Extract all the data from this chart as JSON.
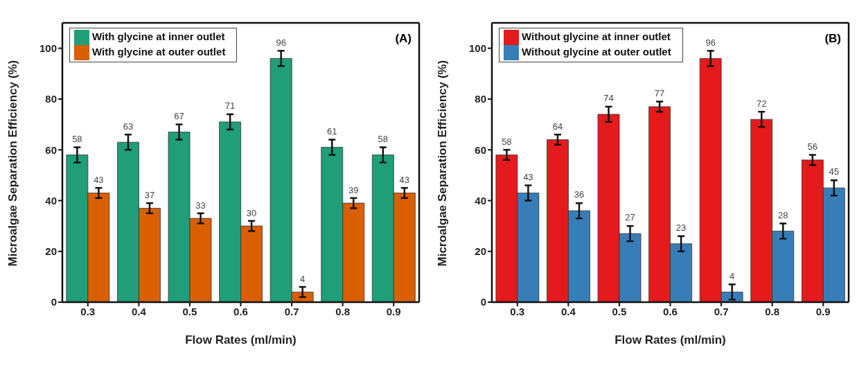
{
  "chart_data": [
    {
      "type": "bar",
      "annotations": [
        "(A)"
      ],
      "xlabel": "Flow Rates (ml/min)",
      "ylabel": "Microalgae Separation Efficiency (%)",
      "categories": [
        "0.3",
        "0.4",
        "0.5",
        "0.6",
        "0.7",
        "0.8",
        "0.9"
      ],
      "series": [
        {
          "name": "With glycine at inner outlet",
          "color": "#1f9e78",
          "values": [
            58,
            63,
            67,
            71,
            96,
            61,
            58
          ],
          "errors": [
            3,
            3,
            3,
            3,
            3,
            3,
            3
          ]
        },
        {
          "name": "With glycine at outer outlet",
          "color": "#d95f02",
          "values": [
            43,
            37,
            33,
            30,
            4,
            39,
            43
          ],
          "errors": [
            2,
            2,
            2,
            2,
            2,
            2,
            2
          ]
        }
      ],
      "ylim": [
        0,
        110
      ],
      "yticks": [
        0,
        20,
        40,
        60,
        80,
        100
      ],
      "data_labels": true,
      "legend": "top left",
      "grid": false
    },
    {
      "type": "bar",
      "annotations": [
        "(B)"
      ],
      "xlabel": "Flow Rates (ml/min)",
      "ylabel": "Microalgae Separation Efficiency (%)",
      "categories": [
        "0.3",
        "0.4",
        "0.5",
        "0.6",
        "0.7",
        "0.8",
        "0.9"
      ],
      "series": [
        {
          "name": "Without glycine at inner outlet",
          "color": "#e41a1c",
          "values": [
            58,
            64,
            74,
            77,
            96,
            72,
            56
          ],
          "errors": [
            2,
            2,
            3,
            2,
            3,
            3,
            2
          ]
        },
        {
          "name": "Without glycine at outer outlet",
          "color": "#377eb8",
          "values": [
            43,
            36,
            27,
            23,
            4,
            28,
            45
          ],
          "errors": [
            3,
            3,
            3,
            3,
            3,
            3,
            3
          ]
        }
      ],
      "ylim": [
        0,
        110
      ],
      "yticks": [
        0,
        20,
        40,
        60,
        80,
        100
      ],
      "data_labels": true,
      "legend": "top left",
      "grid": false
    }
  ]
}
